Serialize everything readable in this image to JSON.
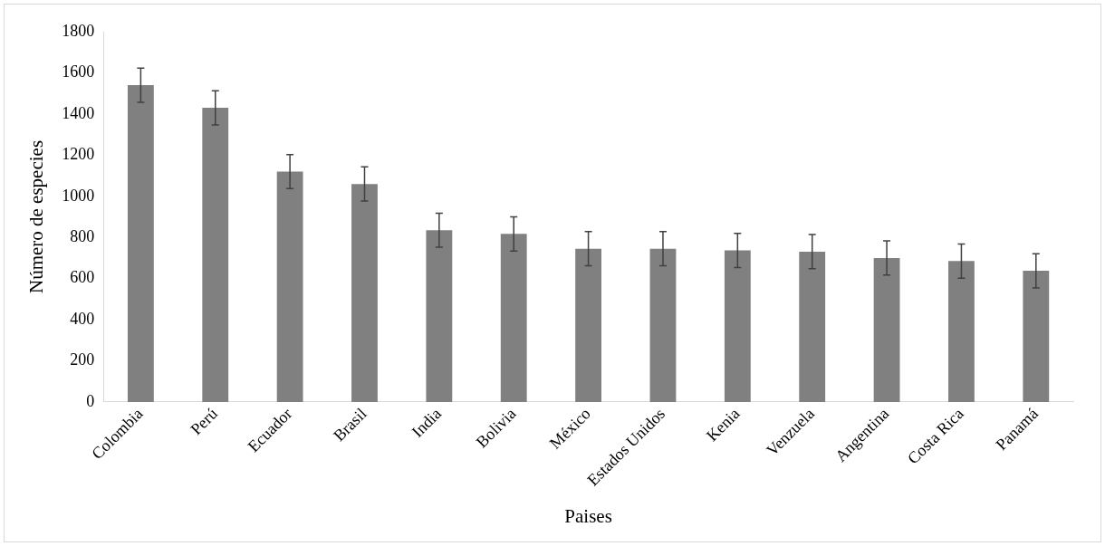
{
  "chart_data": {
    "type": "bar",
    "xlabel": "Paises",
    "ylabel": "Número de especies",
    "categories": [
      "Colombia",
      "Perú",
      "Ecuador",
      "Brasil",
      "India",
      "Bolivia",
      "México",
      "Estados Unidos",
      "Kenia",
      "Venzuela",
      "Angentina",
      "Costa Rica",
      "Panamá"
    ],
    "values": [
      1540,
      1430,
      1120,
      1060,
      835,
      817,
      745,
      745,
      737,
      731,
      700,
      685,
      638
    ],
    "errors": [
      83,
      83,
      83,
      83,
      83,
      83,
      83,
      83,
      83,
      83,
      83,
      83,
      83
    ],
    "color": "#808080",
    "ylim": [
      0,
      1800
    ],
    "yticks": [
      0,
      200,
      400,
      600,
      800,
      1000,
      1200,
      1400,
      1600,
      1800
    ],
    "grid": false,
    "legend": false
  }
}
